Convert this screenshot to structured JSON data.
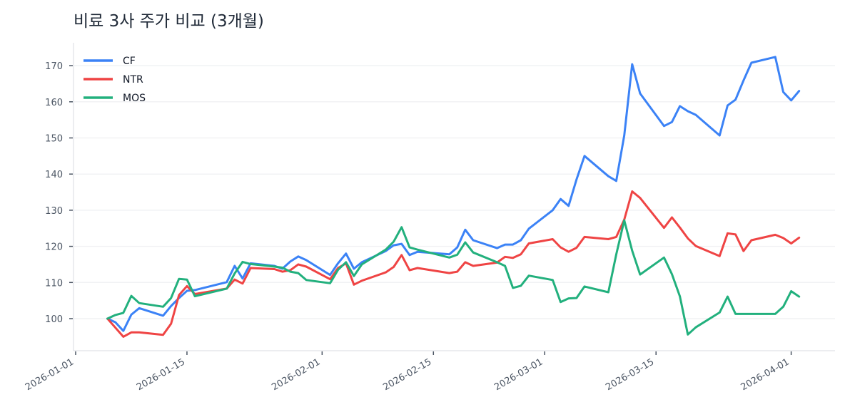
{
  "header": {
    "title": "비료 3사 주가 비교 (3개월)"
  },
  "legend": [
    {
      "label": "CF",
      "color": "#3B82F6"
    },
    {
      "label": "NTR",
      "color": "#EF4444"
    },
    {
      "label": "MOS",
      "color": "#22B07D"
    }
  ],
  "chart_data": {
    "type": "line",
    "title": "비료 3사 주가 비교 (3개월)",
    "xlabel": "",
    "ylabel": "",
    "ylim": [
      91,
      176.5
    ],
    "xlim": [
      "2025-12-31",
      "2026-04-06"
    ],
    "grid": "horizontal",
    "legend_position": "upper left",
    "yticks": [
      100,
      110,
      120,
      130,
      140,
      150,
      160,
      170
    ],
    "xticks": [
      "2026-01-01",
      "2026-01-15",
      "2026-02-01",
      "2026-02-15",
      "2026-03-01",
      "2026-03-15",
      "2026-04-01"
    ],
    "x": [
      "2026-01-05",
      "2026-01-06",
      "2026-01-07",
      "2026-01-08",
      "2026-01-09",
      "2026-01-12",
      "2026-01-13",
      "2026-01-14",
      "2026-01-15",
      "2026-01-16",
      "2026-01-20",
      "2026-01-21",
      "2026-01-22",
      "2026-01-23",
      "2026-01-26",
      "2026-01-27",
      "2026-01-28",
      "2026-01-29",
      "2026-01-30",
      "2026-02-02",
      "2026-02-03",
      "2026-02-04",
      "2026-02-05",
      "2026-02-06",
      "2026-02-09",
      "2026-02-10",
      "2026-02-11",
      "2026-02-12",
      "2026-02-13",
      "2026-02-17",
      "2026-02-18",
      "2026-02-19",
      "2026-02-20",
      "2026-02-23",
      "2026-02-24",
      "2026-02-25",
      "2026-02-26",
      "2026-02-27",
      "2026-03-02",
      "2026-03-03",
      "2026-03-04",
      "2026-03-05",
      "2026-03-06",
      "2026-03-09",
      "2026-03-10",
      "2026-03-11",
      "2026-03-12",
      "2026-03-13",
      "2026-03-16",
      "2026-03-17",
      "2026-03-18",
      "2026-03-19",
      "2026-03-20",
      "2026-03-23",
      "2026-03-24",
      "2026-03-25",
      "2026-03-26",
      "2026-03-27",
      "2026-03-30",
      "2026-03-31",
      "2026-04-01",
      "2026-04-02"
    ],
    "series": [
      {
        "name": "CF",
        "color": "#3B82F6",
        "values": [
          100.0,
          99.0,
          96.6,
          101.1,
          102.9,
          100.8,
          103.5,
          105.7,
          107.7,
          107.9,
          110.1,
          114.6,
          111.1,
          115.3,
          114.6,
          113.8,
          115.8,
          117.2,
          116.2,
          112.1,
          115.3,
          118.0,
          113.8,
          115.6,
          118.7,
          120.3,
          120.7,
          117.6,
          118.5,
          117.8,
          119.7,
          124.6,
          121.7,
          119.5,
          120.5,
          120.5,
          121.7,
          124.9,
          130.0,
          133.1,
          131.2,
          138.5,
          145.0,
          139.4,
          138.1,
          150.7,
          170.4,
          162.3,
          153.3,
          154.4,
          158.8,
          157.4,
          156.4,
          150.7,
          159.0,
          160.6,
          165.9,
          170.8,
          172.4,
          162.7,
          160.4,
          163.0
        ]
      },
      {
        "name": "NTR",
        "color": "#EF4444",
        "values": [
          100.0,
          97.5,
          95.0,
          96.2,
          96.2,
          95.5,
          98.6,
          106.5,
          109.0,
          106.8,
          108.3,
          110.8,
          109.7,
          114.0,
          113.7,
          113.0,
          113.4,
          115.0,
          114.4,
          110.9,
          114.0,
          115.3,
          109.4,
          110.5,
          112.8,
          114.3,
          117.6,
          113.4,
          114.0,
          112.6,
          113.0,
          115.6,
          114.6,
          115.5,
          117.1,
          116.8,
          117.8,
          120.8,
          122.0,
          119.7,
          118.5,
          119.6,
          122.6,
          122.0,
          122.6,
          127.4,
          135.2,
          133.4,
          125.1,
          128.0,
          125.2,
          122.2,
          120.1,
          117.3,
          123.6,
          123.3,
          118.7,
          121.7,
          123.2,
          122.3,
          120.8,
          122.4
        ]
      },
      {
        "name": "MOS",
        "color": "#22B07D",
        "values": [
          100.0,
          101.0,
          101.6,
          106.3,
          104.3,
          103.3,
          105.7,
          111.0,
          110.8,
          106.2,
          108.3,
          112.5,
          115.7,
          115.1,
          114.4,
          114.1,
          113.0,
          112.6,
          110.7,
          109.8,
          113.5,
          115.6,
          111.8,
          115.0,
          119.1,
          121.3,
          125.3,
          119.7,
          119.1,
          116.9,
          117.7,
          121.1,
          118.3,
          115.6,
          114.6,
          108.5,
          109.1,
          111.9,
          110.7,
          104.6,
          105.6,
          105.7,
          108.9,
          107.3,
          117.8,
          127.2,
          118.8,
          112.2,
          116.9,
          112.3,
          106.2,
          95.6,
          97.6,
          101.7,
          106.1,
          101.3,
          101.3,
          101.3,
          101.3,
          103.3,
          107.6,
          106.1
        ]
      }
    ]
  }
}
